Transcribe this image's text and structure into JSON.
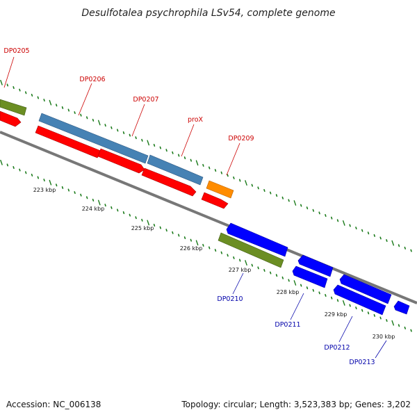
{
  "title": "Desulfotalea psychrophila LSv54, complete genome",
  "footer": {
    "accession": "Accession: NC_006138",
    "summary": "Topology: circular; Length: 3,523,383 bp; Genes: 3,202"
  },
  "colors": {
    "backbone": "#888888",
    "tick": "#1a7a1a",
    "label_forward": "#cc0000",
    "label_reverse": "#0000aa",
    "green_feature": "#6b8e23",
    "steel_feature": "#4682b4",
    "orange_feature": "#ff8c00",
    "red_cds": "#ff0000",
    "blue_cds": "#0000ff"
  },
  "scale_labels": [
    "223 kbp",
    "224 kbp",
    "225 kbp",
    "226 kbp",
    "227 kbp",
    "228 kbp",
    "229 kbp",
    "230 kbp"
  ],
  "gene_labels": {
    "forward": [
      "DP0205",
      "DP0206",
      "DP0207",
      "proX",
      "DP0209"
    ],
    "reverse": [
      "DP0210",
      "DP0211",
      "DP0212",
      "DP0213"
    ]
  }
}
